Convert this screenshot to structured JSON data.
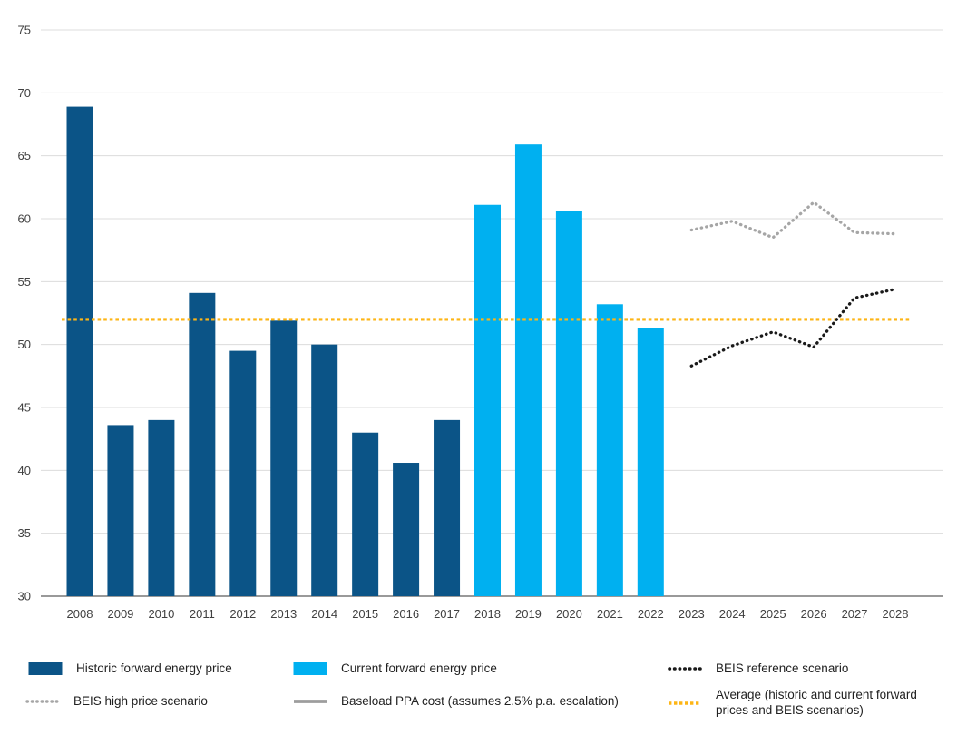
{
  "colors": {
    "historic_bar": "#0B5487",
    "current_bar": "#00B0F0",
    "beis_reference": "#1A1A1A",
    "beis_high": "#A6A6A6",
    "baseload_ppa": "#9D9D9D",
    "average": "#FDB515",
    "gridline": "#DCDCDC",
    "axis_line": "#999999",
    "tick_text": "#404040"
  },
  "chart_data": {
    "type": "bar",
    "title": "",
    "xlabel": "",
    "ylabel": "",
    "ylim": [
      30,
      75
    ],
    "yticks": [
      30,
      35,
      40,
      45,
      50,
      55,
      60,
      65,
      70,
      75
    ],
    "grid": true,
    "legend_position": "bottom",
    "categories": [
      "2008",
      "2009",
      "2010",
      "2011",
      "2012",
      "2013",
      "2014",
      "2015",
      "2016",
      "2017",
      "2018",
      "2019",
      "2020",
      "2021",
      "2022",
      "2023",
      "2024",
      "2025",
      "2026",
      "2027",
      "2028"
    ],
    "series": [
      {
        "name": "Historic forward energy price",
        "type": "bar",
        "color_key": "historic_bar",
        "values": [
          68.9,
          43.6,
          44.0,
          54.1,
          49.5,
          51.9,
          50.0,
          43.0,
          40.6,
          44.0,
          null,
          null,
          null,
          null,
          null,
          null,
          null,
          null,
          null,
          null,
          null
        ]
      },
      {
        "name": "Current forward energy price",
        "type": "bar",
        "color_key": "current_bar",
        "values": [
          null,
          null,
          null,
          null,
          null,
          null,
          null,
          null,
          null,
          null,
          61.1,
          65.9,
          60.6,
          53.2,
          51.3,
          null,
          null,
          null,
          null,
          null,
          null
        ]
      },
      {
        "name": "BEIS high price scenario",
        "type": "dotted-line",
        "color_key": "beis_high",
        "values": [
          null,
          null,
          null,
          null,
          null,
          null,
          null,
          null,
          null,
          null,
          null,
          null,
          null,
          null,
          null,
          59.1,
          59.8,
          58.5,
          61.3,
          58.9,
          58.8
        ]
      },
      {
        "name": "BEIS reference scenario",
        "type": "dotted-line",
        "color_key": "beis_reference",
        "values": [
          null,
          null,
          null,
          null,
          null,
          null,
          null,
          null,
          null,
          null,
          null,
          null,
          null,
          null,
          null,
          48.3,
          49.9,
          51.0,
          49.8,
          53.7,
          54.4
        ]
      },
      {
        "name": "Baseload PPA cost (assumes 2.5% p.a. escalation)",
        "type": "solid-line",
        "color_key": "baseload_ppa",
        "values": [
          null,
          null,
          null,
          null,
          null,
          null,
          null,
          null,
          null,
          null,
          null,
          null,
          null,
          null,
          null,
          null,
          null,
          null,
          null,
          null,
          null
        ]
      }
    ],
    "average_line": {
      "value": 52.0,
      "color_key": "average"
    }
  },
  "legend": {
    "items": [
      {
        "label": "Historic forward energy price",
        "swatch": "bar",
        "color_key": "historic_bar"
      },
      {
        "label": "Current forward energy price",
        "swatch": "bar",
        "color_key": "current_bar"
      },
      {
        "label": "BEIS reference scenario",
        "swatch": "dots-round",
        "color_key": "beis_reference"
      },
      {
        "label": "BEIS high price scenario",
        "swatch": "dots-round",
        "color_key": "beis_high"
      },
      {
        "label": "Baseload PPA cost (assumes 2.5% p.a. escalation)",
        "swatch": "line-solid",
        "color_key": "baseload_ppa"
      },
      {
        "label": "Average (historic and current forward prices and BEIS scenarios)",
        "swatch": "dots-square",
        "color_key": "average"
      }
    ]
  }
}
